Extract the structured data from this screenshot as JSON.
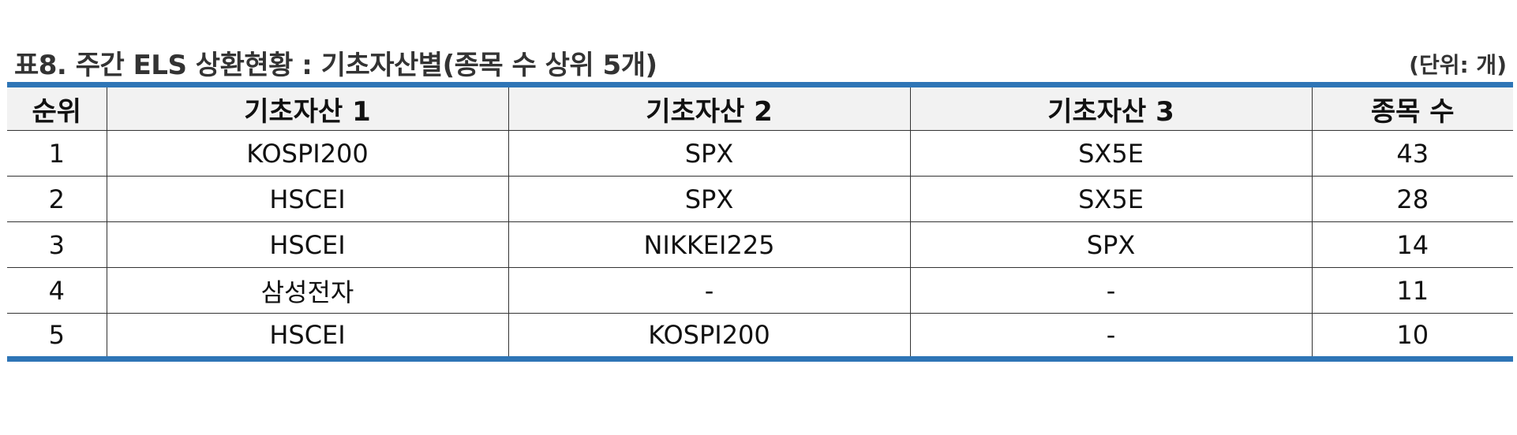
{
  "title": "표8. 주간 ELS 상환현황 : 기초자산별(종목 수 상위 5개)",
  "unit": "(단위: 개)",
  "columns": [
    "순위",
    "기초자산 1",
    "기초자산 2",
    "기초자산 3",
    "종목 수"
  ],
  "rows": [
    [
      "1",
      "KOSPI200",
      "SPX",
      "SX5E",
      "43"
    ],
    [
      "2",
      "HSCEI",
      "SPX",
      "SX5E",
      "28"
    ],
    [
      "3",
      "HSCEI",
      "NIKKEI225",
      "SPX",
      "14"
    ],
    [
      "4",
      "삼성전자",
      "-",
      "-",
      "11"
    ],
    [
      "5",
      "HSCEI",
      "KOSPI200",
      "-",
      "10"
    ]
  ],
  "colors": {
    "accent_border": "#2e75b6",
    "header_bg": "#f2f2f2"
  }
}
